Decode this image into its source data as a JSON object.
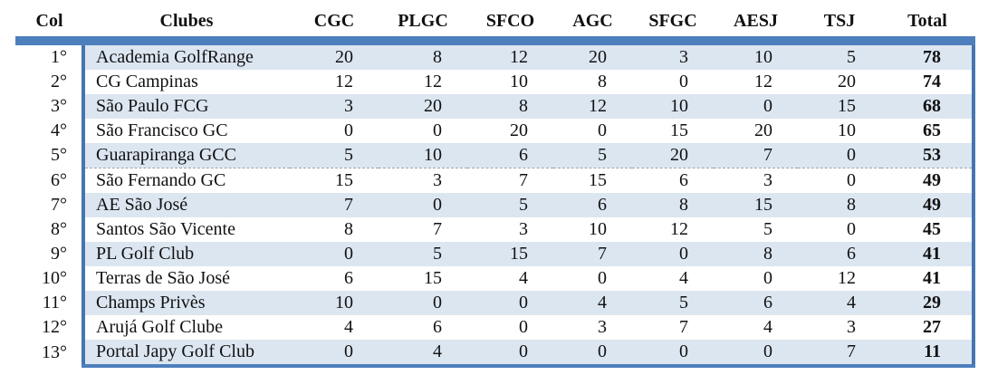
{
  "table": {
    "title": "Golf clubs standings table",
    "columns": [
      {
        "key": "col",
        "label": "Col"
      },
      {
        "key": "clubes",
        "label": "Clubes"
      },
      {
        "key": "cgc",
        "label": "CGC"
      },
      {
        "key": "plgc",
        "label": "PLGC"
      },
      {
        "key": "sfco",
        "label": "SFCO"
      },
      {
        "key": "agc",
        "label": "AGC"
      },
      {
        "key": "sfgc",
        "label": "SFGC"
      },
      {
        "key": "aesj",
        "label": "AESJ"
      },
      {
        "key": "tsj",
        "label": "TSJ"
      },
      {
        "key": "total",
        "label": "Total"
      }
    ],
    "rows": [
      [
        "1°",
        "Academia GolfRange",
        "20",
        "8",
        "12",
        "20",
        "3",
        "10",
        "5",
        "78"
      ],
      [
        "2°",
        "CG Campinas",
        "12",
        "12",
        "10",
        "8",
        "0",
        "12",
        "20",
        "74"
      ],
      [
        "3°",
        "São Paulo FCG",
        "3",
        "20",
        "8",
        "12",
        "10",
        "0",
        "15",
        "68"
      ],
      [
        "4°",
        "São Francisco GC",
        "0",
        "0",
        "20",
        "0",
        "15",
        "20",
        "10",
        "65"
      ],
      [
        "5°",
        "Guarapiranga GCC",
        "5",
        "10",
        "6",
        "5",
        "20",
        "7",
        "0",
        "53"
      ],
      [
        "6°",
        "São Fernando GC",
        "15",
        "3",
        "7",
        "15",
        "6",
        "3",
        "0",
        "49"
      ],
      [
        "7°",
        "AE São José",
        "7",
        "0",
        "5",
        "6",
        "8",
        "15",
        "8",
        "49"
      ],
      [
        "8°",
        "Santos São Vicente",
        "8",
        "7",
        "3",
        "10",
        "12",
        "5",
        "0",
        "45"
      ],
      [
        "9°",
        "PL Golf Club",
        "0",
        "5",
        "15",
        "7",
        "0",
        "8",
        "6",
        "41"
      ],
      [
        "10°",
        "Terras de São José",
        "6",
        "15",
        "4",
        "0",
        "4",
        "0",
        "12",
        "41"
      ],
      [
        "11°",
        "Champs Privès",
        "10",
        "0",
        "0",
        "4",
        "5",
        "6",
        "4",
        "29"
      ],
      [
        "12°",
        "Arujá Golf Clube",
        "4",
        "6",
        "0",
        "3",
        "7",
        "4",
        "3",
        "27"
      ],
      [
        "13°",
        "Portal Japy Golf Club",
        "0",
        "4",
        "0",
        "0",
        "0",
        "0",
        "7",
        "11"
      ]
    ],
    "page_break_row_index": 5,
    "colors": {
      "accent_bar": "#4d7fbc",
      "divider_line": "#4576b0",
      "row_stripe": "#dce6f1",
      "page_break_line": "#9aa4ae",
      "text": "#111111"
    }
  }
}
